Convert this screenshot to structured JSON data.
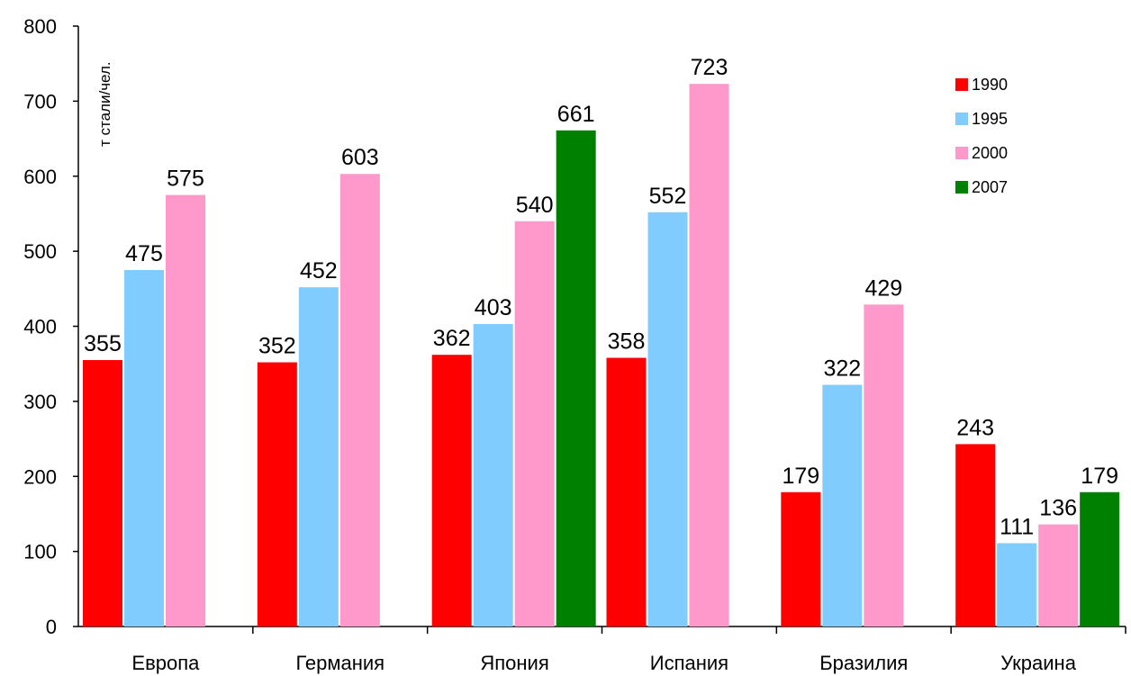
{
  "chart_data": {
    "type": "bar",
    "ylabel": "т стали/чел.",
    "ylim": [
      0,
      800
    ],
    "yticks": [
      0,
      100,
      200,
      300,
      400,
      500,
      600,
      700,
      800
    ],
    "grid": false,
    "legend_position": "top-right",
    "categories": [
      "Европа",
      "Германия",
      "Япония",
      "Испания",
      "Бразилия",
      "Украина"
    ],
    "series": [
      {
        "name": "1990",
        "color": "#ff0000",
        "values": [
          355,
          352,
          362,
          358,
          179,
          243
        ]
      },
      {
        "name": "1995",
        "color": "#80ccff",
        "values": [
          475,
          452,
          403,
          552,
          322,
          111
        ]
      },
      {
        "name": "2000",
        "color": "#ff99cc",
        "values": [
          575,
          603,
          540,
          723,
          429,
          136
        ]
      },
      {
        "name": "2007",
        "color": "#008000",
        "values": [
          null,
          null,
          661,
          null,
          null,
          179
        ]
      }
    ]
  }
}
